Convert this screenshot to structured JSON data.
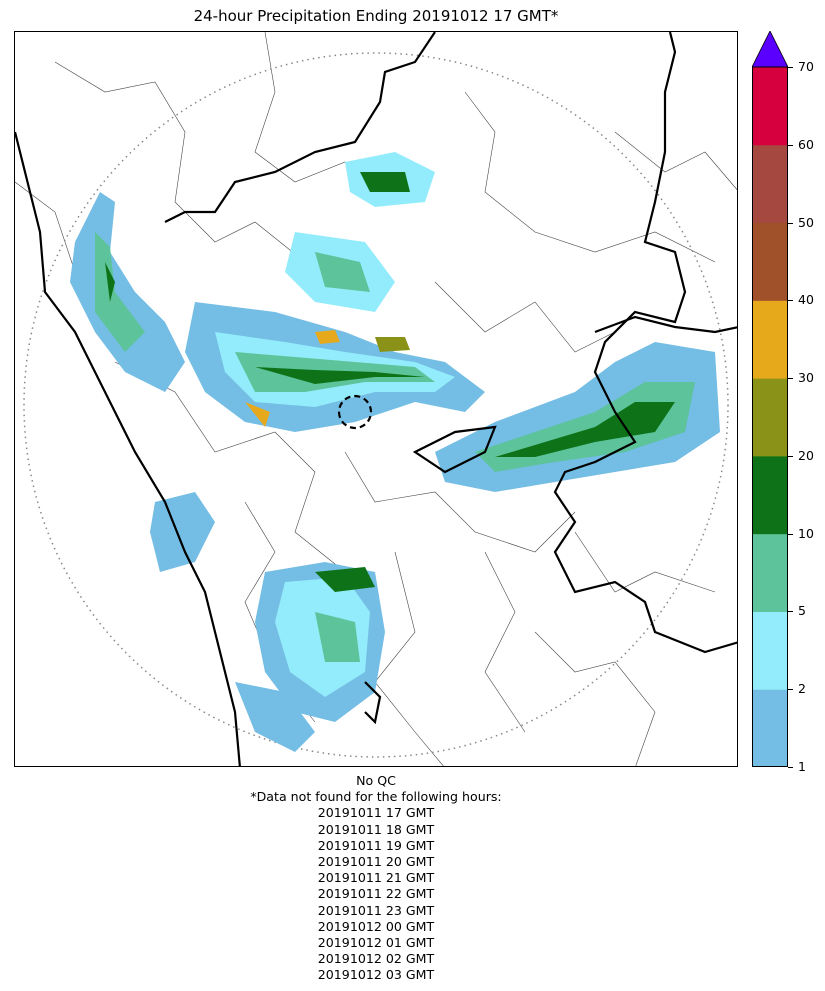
{
  "title": "24-hour Precipitation Ending 20191012 17 GMT*",
  "map": {
    "description_icon": "radar-precipitation-map",
    "range_ring": "dotted"
  },
  "colorbar": {
    "ticks": [
      "1",
      "2",
      "5",
      "10",
      "20",
      "30",
      "40",
      "50",
      "60",
      "70"
    ],
    "colors": [
      "#74bde4",
      "#93ecfb",
      "#5dc39a",
      "#0e7318",
      "#8a9318",
      "#e6a91c",
      "#a0512a",
      "#a5483f",
      "#d6003f"
    ],
    "extend_color": "#5a00ff"
  },
  "notes": {
    "qc": "No QC",
    "missing_header": "*Data not found for the following hours:",
    "hours": [
      "20191011 17 GMT",
      "20191011 18 GMT",
      "20191011 19 GMT",
      "20191011 20 GMT",
      "20191011 21 GMT",
      "20191011 22 GMT",
      "20191011 23 GMT",
      "20191012 00 GMT",
      "20191012 01 GMT",
      "20191012 02 GMT",
      "20191012 03 GMT"
    ]
  }
}
